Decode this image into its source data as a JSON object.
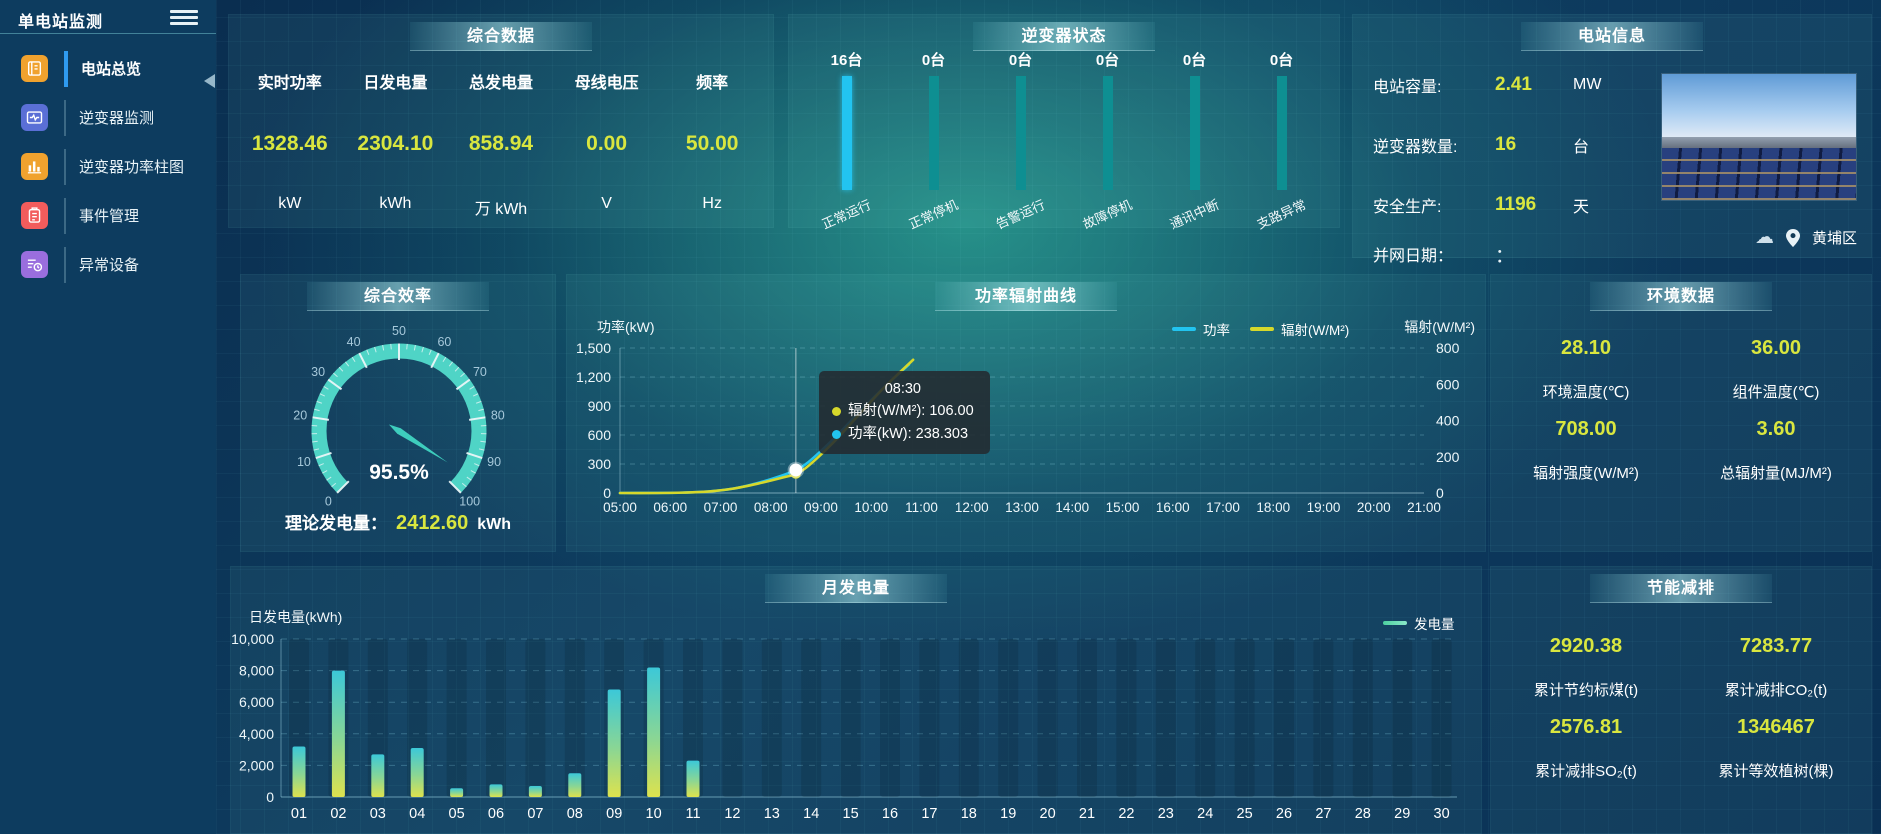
{
  "sidebar": {
    "title": "单电站监测",
    "items": [
      {
        "label": "电站总览",
        "active": true
      },
      {
        "label": "逆变器监测",
        "active": false
      },
      {
        "label": "逆变器功率柱图",
        "active": false
      },
      {
        "label": "事件管理",
        "active": false
      },
      {
        "label": "异常设备",
        "active": false
      }
    ]
  },
  "panels": {
    "summary": {
      "title": "综合数据",
      "metrics": [
        {
          "label": "实时功率",
          "value": "1328.46",
          "unit": "kW"
        },
        {
          "label": "日发电量",
          "value": "2304.10",
          "unit": "kWh"
        },
        {
          "label": "总发电量",
          "value": "858.94",
          "unit": "万 kWh"
        },
        {
          "label": "母线电压",
          "value": "0.00",
          "unit": "V"
        },
        {
          "label": "频率",
          "value": "50.00",
          "unit": "Hz"
        }
      ]
    },
    "inverter_status": {
      "title": "逆变器状态"
    },
    "station_info": {
      "title": "电站信息",
      "rows": [
        {
          "label": "电站容量:",
          "value": "2.41",
          "unit": "MW",
          "muted": false
        },
        {
          "label": "逆变器数量:",
          "value": "16",
          "unit": "台",
          "muted": false
        },
        {
          "label": "安全生产:",
          "value": "1196",
          "unit": "天",
          "muted": false
        },
        {
          "label": "并网日期：",
          "value": "：",
          "unit": "",
          "muted": true
        }
      ],
      "location": "黄埔区"
    },
    "efficiency": {
      "title": "综合效率",
      "theory_label": "理论发电量：",
      "theory_value": "2412.60",
      "theory_unit": "kWh"
    },
    "power_curve": {
      "title": "功率辐射曲线"
    },
    "environment": {
      "title": "环境数据",
      "metrics": [
        {
          "value": "28.10",
          "label": "环境温度(℃)"
        },
        {
          "value": "36.00",
          "label": "组件温度(℃)"
        },
        {
          "value": "708.00",
          "label": "辐射强度(W/M²)"
        },
        {
          "value": "3.60",
          "label": "总辐射量(MJ/M²)"
        }
      ]
    },
    "monthly": {
      "title": "月发电量"
    },
    "saving": {
      "title": "节能减排",
      "metrics": [
        {
          "value": "2920.38",
          "label": "累计节约标煤(t)"
        },
        {
          "value": "7283.77",
          "label": "累计减排CO₂(t)"
        },
        {
          "value": "2576.81",
          "label": "累计减排SO₂(t)"
        },
        {
          "value": "1346467",
          "label": "累计等效植树(棵)"
        }
      ]
    }
  },
  "colors": {
    "value_yellow": "#d9e63f",
    "power_line": "#22c4f0",
    "radiation_line": "#d6d82b",
    "status_bar_highlight": "#22c4f0",
    "status_bar_normal": "#0e8f92",
    "gauge_arc": "#4fd4c6"
  },
  "chart_data": [
    {
      "id": "inverter_status",
      "type": "bar",
      "title": "逆变器状态",
      "categories": [
        "正常运行",
        "正常停机",
        "告警运行",
        "故障停机",
        "通讯中断",
        "支路异常"
      ],
      "values": [
        16,
        0,
        0,
        0,
        0,
        0
      ],
      "unit": "台",
      "bar_colors": [
        "#22c4f0",
        "#0e8f92",
        "#0e8f92",
        "#0e8f92",
        "#0e8f92",
        "#0e8f92"
      ]
    },
    {
      "id": "efficiency_gauge",
      "type": "gauge",
      "title": "综合效率",
      "value": 95.5,
      "label": "95.5%",
      "min": 0,
      "max": 100,
      "tick_step": 10
    },
    {
      "id": "power_radiation",
      "type": "line",
      "title": "功率辐射曲线",
      "x_labels": [
        "05:00",
        "06:00",
        "07:00",
        "08:00",
        "09:00",
        "10:00",
        "11:00",
        "12:00",
        "13:00",
        "14:00",
        "15:00",
        "16:00",
        "17:00",
        "18:00",
        "19:00",
        "20:00",
        "21:00"
      ],
      "left_axis": {
        "name": "功率(kW)",
        "ticks": [
          "0",
          "300",
          "600",
          "900",
          "1,200",
          "1,500"
        ],
        "max": 1500
      },
      "right_axis": {
        "name": "辐射(W/M²)",
        "ticks": [
          "0",
          "200",
          "400",
          "600",
          "800"
        ],
        "max": 800
      },
      "legend_position": "top-center-right",
      "grid": true,
      "series": [
        {
          "name": "功率",
          "color": "#22c4f0",
          "axis": "left",
          "points": [
            [
              "05:00",
              0
            ],
            [
              "05:45",
              1
            ],
            [
              "06:15",
              4
            ],
            [
              "06:45",
              15
            ],
            [
              "07:15",
              45
            ],
            [
              "07:45",
              105
            ],
            [
              "08:15",
              185
            ],
            [
              "08:30",
              238.3
            ],
            [
              "08:45",
              320
            ],
            [
              "09:15",
              560
            ],
            [
              "09:45",
              830
            ],
            [
              "10:15",
              1090
            ],
            [
              "10:45",
              1328.46
            ]
          ]
        },
        {
          "name": "辐射(W/M²)",
          "color": "#d6d82b",
          "axis": "right",
          "points": [
            [
              "05:00",
              0
            ],
            [
              "05:45",
              0
            ],
            [
              "06:15",
              2
            ],
            [
              "06:45",
              8
            ],
            [
              "07:15",
              24
            ],
            [
              "07:45",
              52
            ],
            [
              "08:15",
              86
            ],
            [
              "08:30",
              106
            ],
            [
              "08:45",
              150
            ],
            [
              "09:15",
              280
            ],
            [
              "09:45",
              430
            ],
            [
              "10:15",
              580
            ],
            [
              "10:50",
              735
            ]
          ]
        }
      ],
      "crosshair_x": "08:30",
      "tooltip": {
        "time": "08:30",
        "rows": [
          {
            "text": "辐射(W/M²): 106.00",
            "color": "#d6d82b"
          },
          {
            "text": "功率(kW): 238.303",
            "color": "#22c4f0"
          }
        ]
      }
    },
    {
      "id": "monthly_generation",
      "type": "bar",
      "title": "月发电量",
      "ylabel": "日发电量(kWh)",
      "legend": "发电量",
      "categories": [
        "01",
        "02",
        "03",
        "04",
        "05",
        "06",
        "07",
        "08",
        "09",
        "10",
        "11",
        "12",
        "13",
        "14",
        "15",
        "16",
        "17",
        "18",
        "19",
        "20",
        "21",
        "22",
        "23",
        "24",
        "25",
        "26",
        "27",
        "28",
        "29",
        "30"
      ],
      "values": [
        3200,
        8000,
        2700,
        3100,
        550,
        800,
        700,
        1500,
        6800,
        8200,
        2300,
        0,
        0,
        0,
        0,
        0,
        0,
        0,
        0,
        0,
        0,
        0,
        0,
        0,
        0,
        0,
        0,
        0,
        0,
        0
      ],
      "y_ticks": [
        "0",
        "2,000",
        "4,000",
        "6,000",
        "8,000",
        "10,000"
      ],
      "ymax": 10000,
      "grid": true
    }
  ]
}
